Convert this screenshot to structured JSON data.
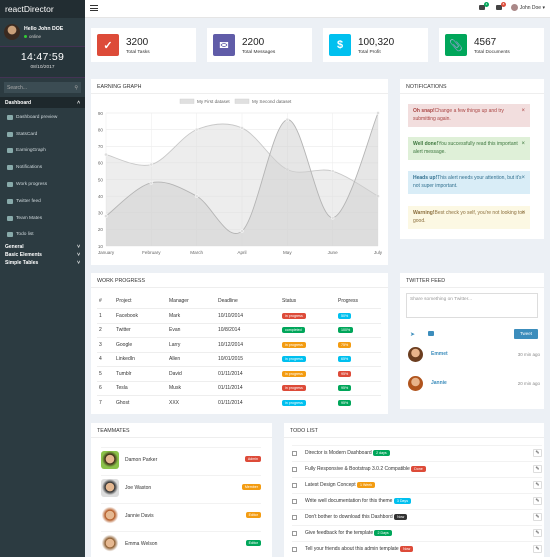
{
  "app": {
    "brand": "reactDirector"
  },
  "user": {
    "name": "Hello John DOE",
    "status": "online"
  },
  "clock": {
    "time": "14:47:59",
    "date": "08/10/2017"
  },
  "search": {
    "placeholder": "Search..."
  },
  "sidebar": {
    "section": "Dashboard",
    "items": [
      {
        "label": "Dashboard preview"
      },
      {
        "label": "StatsCard"
      },
      {
        "label": "EarningGraph"
      },
      {
        "label": "Notifications"
      },
      {
        "label": "Work progress"
      },
      {
        "label": "Twitter feed"
      },
      {
        "label": "Team Mates"
      },
      {
        "label": "Todo list"
      }
    ],
    "groups": [
      {
        "label": "General"
      },
      {
        "label": "Basic Elements"
      },
      {
        "label": "Simple Tables"
      }
    ]
  },
  "topbar": {
    "badges": [
      "4",
      "8"
    ],
    "user": "John Doe"
  },
  "stats": [
    {
      "value": "3200",
      "label": "Total Tasks",
      "color": "#dd4b39",
      "icon": "check-square-icon"
    },
    {
      "value": "2200",
      "label": "Total Messages",
      "color": "#605ca8",
      "icon": "envelope-icon"
    },
    {
      "value": "100,320",
      "label": "Total Profit",
      "color": "#00c0ef",
      "icon": "dollar-icon"
    },
    {
      "value": "4567",
      "label": "Total Documents",
      "color": "#00a65a",
      "icon": "paperclip-icon"
    }
  ],
  "earning": {
    "title": "EARNING GRAPH"
  },
  "chart_data": {
    "type": "area",
    "categories": [
      "January",
      "February",
      "March",
      "April",
      "May",
      "June",
      "July"
    ],
    "series": [
      {
        "name": "My First dataset",
        "values": [
          65,
          59,
          80,
          81,
          56,
          55,
          40
        ]
      },
      {
        "name": "My Second dataset",
        "values": [
          28,
          48,
          40,
          19,
          86,
          27,
          90
        ]
      }
    ],
    "ylim": [
      10,
      90
    ],
    "yticks": [
      "90",
      "80",
      "70",
      "60",
      "50",
      "40",
      "30",
      "20",
      "10"
    ],
    "legend": "top-center",
    "grid": true
  },
  "notifications": {
    "title": "NOTIFICATIONS",
    "items": [
      {
        "strong": "Oh snap!",
        "text": "Change a few things up and try submitting again.",
        "bg": "#f2dede",
        "color": "#a94442"
      },
      {
        "strong": "Well done!",
        "text": "You successfully read this important alert message.",
        "bg": "#dff0d8",
        "color": "#3c763d"
      },
      {
        "strong": "Heads up!",
        "text": "This alert needs your attention, but it's not super important.",
        "bg": "#d9edf7",
        "color": "#31708f"
      },
      {
        "strong": "Warning!",
        "text": "Best check yo self, you're not looking too good.",
        "bg": "#fcf8e3",
        "color": "#8a6d3b"
      }
    ]
  },
  "work": {
    "title": "WORK PROGRESS",
    "headers": [
      "#",
      "Project",
      "Manager",
      "Deadline",
      "Status",
      "Progress"
    ],
    "rows": [
      {
        "n": "1",
        "project": "Facebook",
        "manager": "Mark",
        "deadline": "10/10/2014",
        "status": "in progress",
        "status_color": "#dd4b39",
        "progress": "50%",
        "progress_color": "#00c0ef"
      },
      {
        "n": "2",
        "project": "Twitter",
        "manager": "Evan",
        "deadline": "10/8/2014",
        "status": "completed",
        "status_color": "#00a65a",
        "progress": "100%",
        "progress_color": "#00a65a"
      },
      {
        "n": "3",
        "project": "Google",
        "manager": "Larry",
        "deadline": "10/12/2014",
        "status": "in progress",
        "status_color": "#f39c12",
        "progress": "75%",
        "progress_color": "#f39c12"
      },
      {
        "n": "4",
        "project": "LinkedIn",
        "manager": "Allen",
        "deadline": "10/01/2015",
        "status": "in progress",
        "status_color": "#00c0ef",
        "progress": "65%",
        "progress_color": "#00c0ef"
      },
      {
        "n": "5",
        "project": "Tumblr",
        "manager": "David",
        "deadline": "01/11/2014",
        "status": "in progress",
        "status_color": "#f39c12",
        "progress": "95%",
        "progress_color": "#dd4b39"
      },
      {
        "n": "6",
        "project": "Tesla",
        "manager": "Musk",
        "deadline": "01/11/2014",
        "status": "in progress",
        "status_color": "#dd4b39",
        "progress": "95%",
        "progress_color": "#00a65a"
      },
      {
        "n": "7",
        "project": "Ghost",
        "manager": "XXX",
        "deadline": "01/11/2014",
        "status": "in progress",
        "status_color": "#00c0ef",
        "progress": "95%",
        "progress_color": "#00a65a"
      }
    ]
  },
  "twitter": {
    "title": "TWITTER FEED",
    "placeholder": "Share something on Twitter...",
    "button": "Tweet",
    "items": [
      {
        "name": "Emmet",
        "time": "30 min ago"
      },
      {
        "name": "Jannie",
        "time": "20 min ago"
      }
    ]
  },
  "team": {
    "title": "TEAMMATES",
    "members": [
      {
        "name": "Damon Parker",
        "label": "Admin",
        "color": "#dd4b39"
      },
      {
        "name": "Joe Waston",
        "label": "Member",
        "color": "#f39c12"
      },
      {
        "name": "Jannie Davis",
        "label": "Editor",
        "color": "#f39c12"
      },
      {
        "name": "Emma Welson",
        "label": "Editor",
        "color": "#00a65a"
      }
    ]
  },
  "todo": {
    "title": "TODO LIST",
    "items": [
      {
        "text": "Director is Modern Dashboard",
        "badge": "2 days",
        "color": "#00a65a"
      },
      {
        "text": "Fully Responsive & Bootstrap 3.0.2 Compatible",
        "badge": "Done",
        "color": "#dd4b39"
      },
      {
        "text": "Latest Design Concept",
        "badge": "1 Week",
        "color": "#f39c12"
      },
      {
        "text": "Write well documentation for this theme",
        "badge": "3 Days",
        "color": "#00c0ef"
      },
      {
        "text": "Don't bother to download this Dashbord",
        "badge": "Now",
        "color": "#333333"
      },
      {
        "text": "Give feedback for the template",
        "badge": "2 Days",
        "color": "#00a65a"
      },
      {
        "text": "Tell your friends about this admin template",
        "badge": "Now",
        "color": "#dd4b39"
      }
    ]
  }
}
